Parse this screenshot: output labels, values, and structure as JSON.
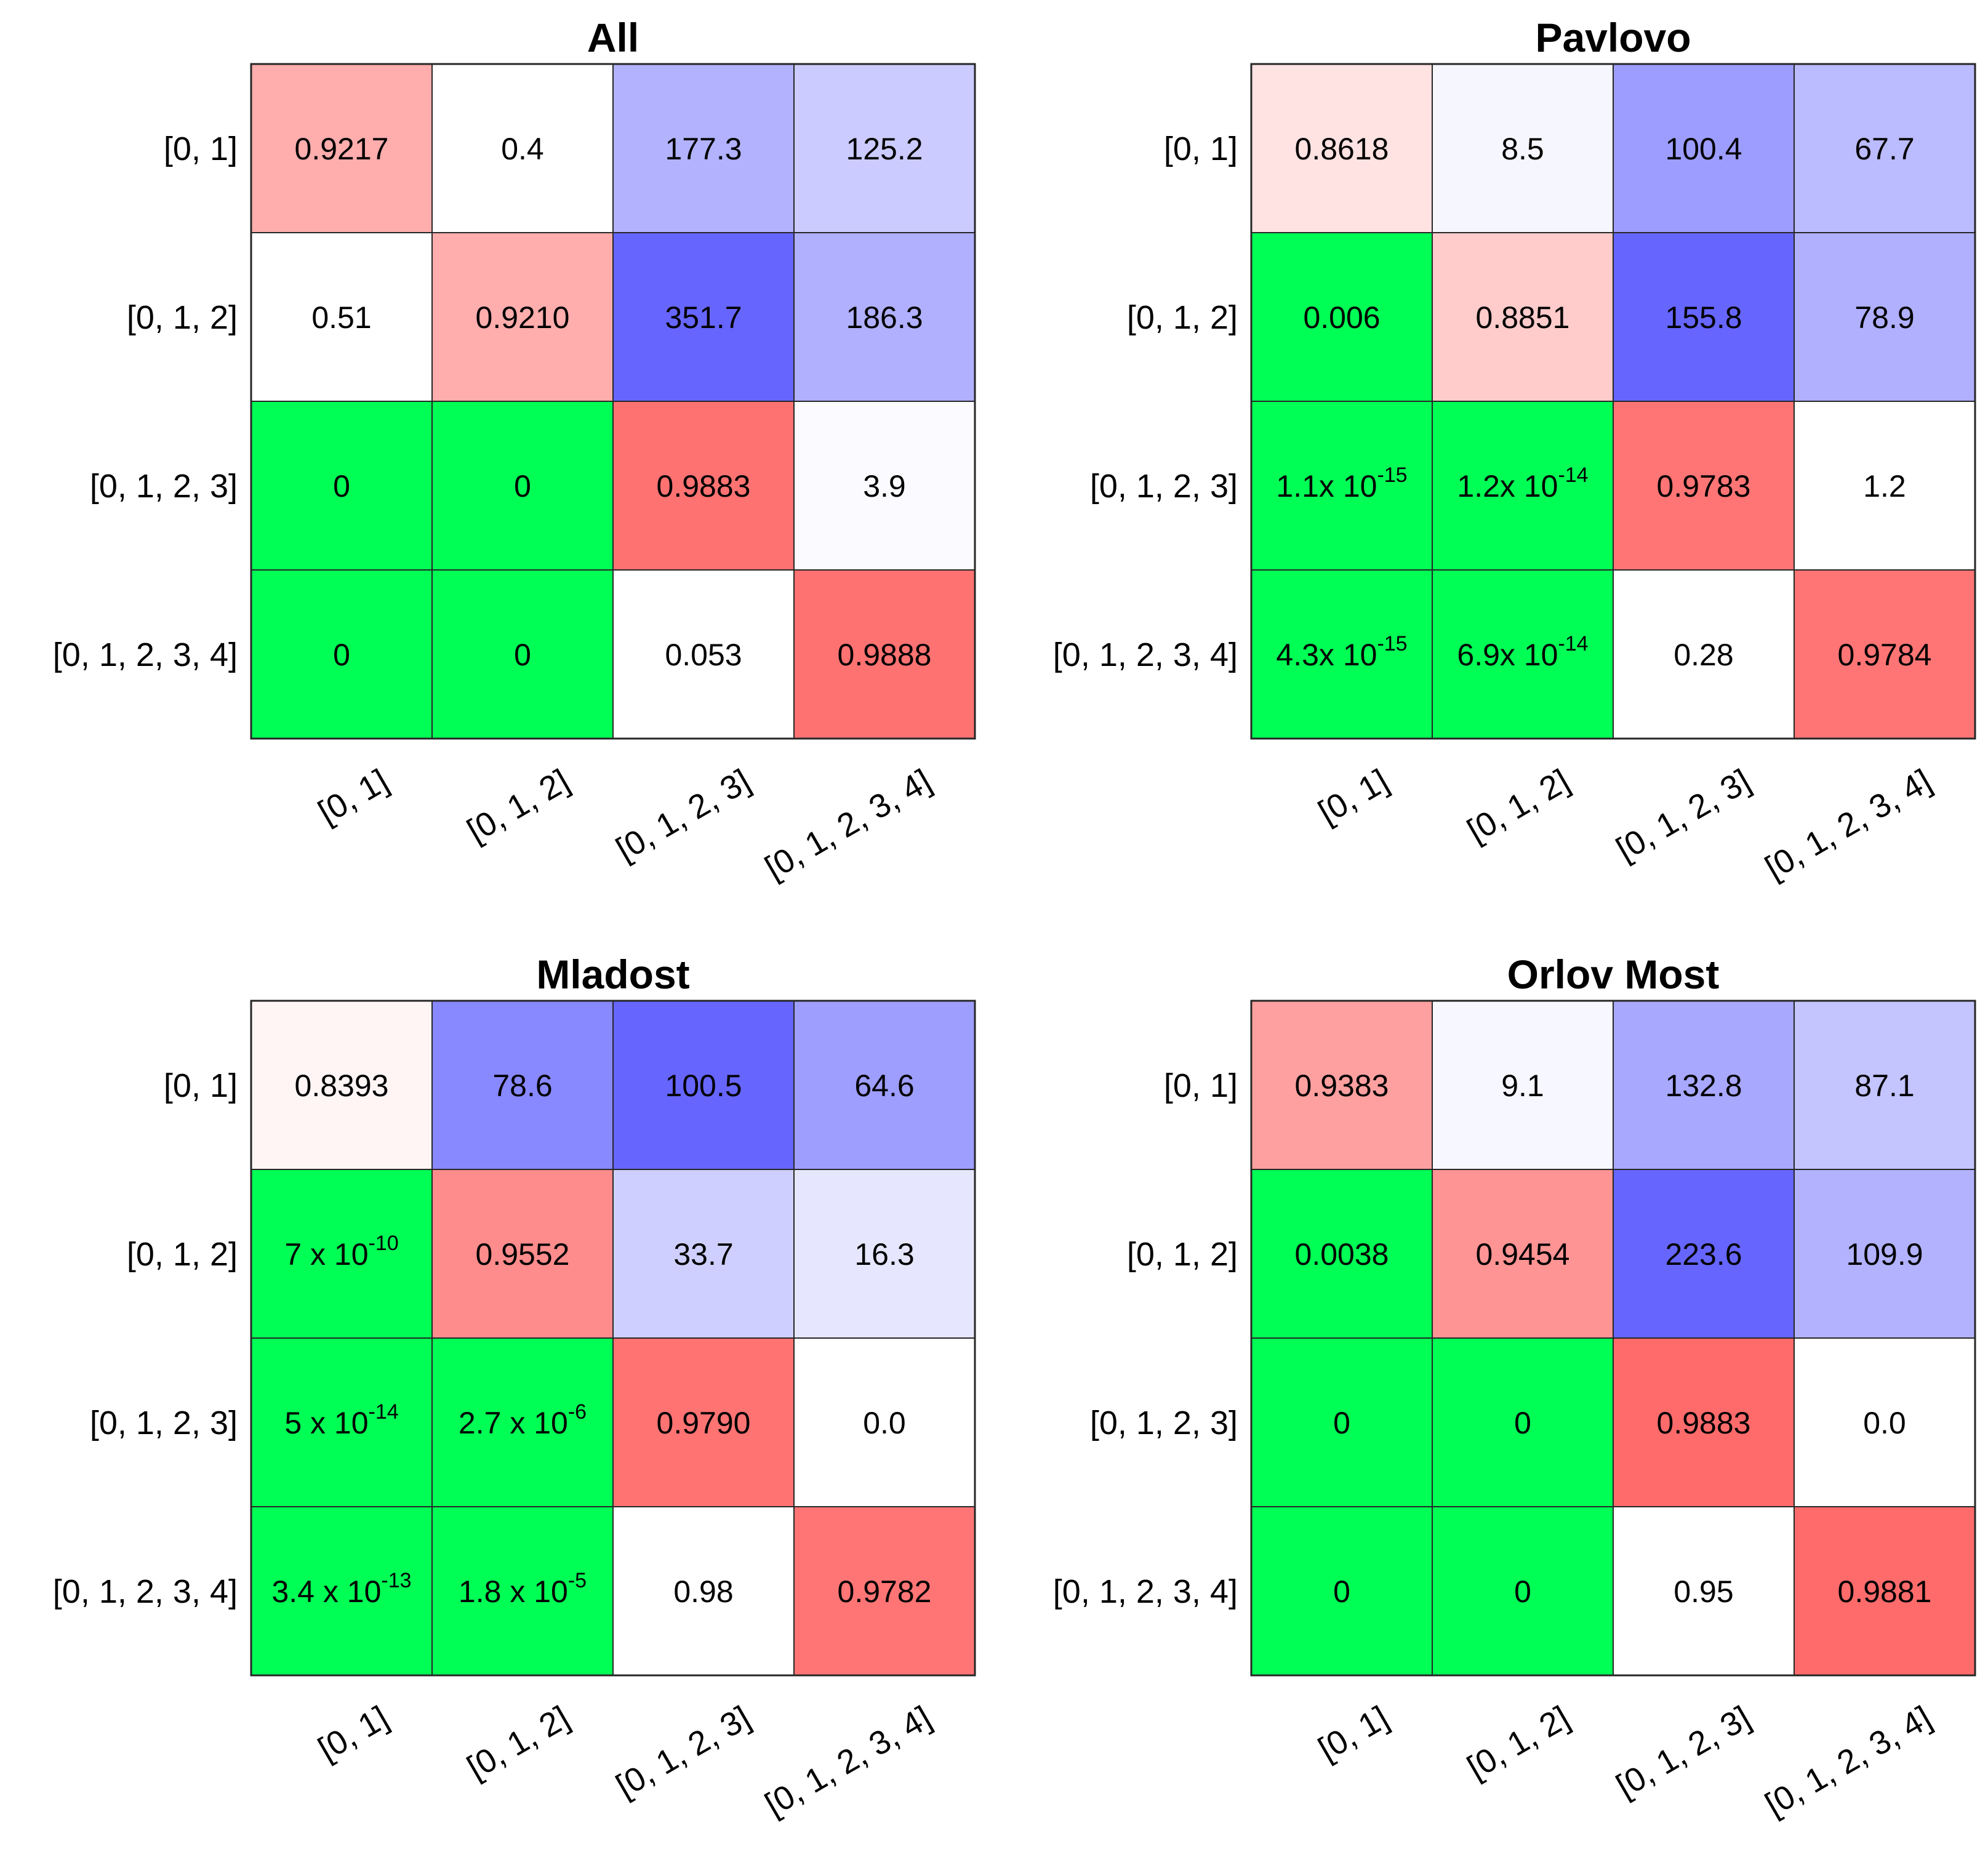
{
  "chart_data": [
    {
      "type": "heatmap",
      "title": "All",
      "row_labels": [
        "[0, 1]",
        "[0, 1, 2]",
        "[0, 1, 2, 3]",
        "[0, 1, 2, 3, 4]"
      ],
      "col_labels": [
        "[0, 1]",
        "[0, 1, 2]",
        "[0, 1, 2, 3]",
        "[0, 1, 2, 3, 4]"
      ],
      "cells": [
        [
          {
            "text": "0.9217",
            "color": "#ffadad"
          },
          {
            "text": "0.4",
            "color": "#ffffff"
          },
          {
            "text": "177.3",
            "color": "#b2b2ff"
          },
          {
            "text": "125.2",
            "color": "#cbcbff"
          }
        ],
        [
          {
            "text": "0.51",
            "color": "#ffffff"
          },
          {
            "text": "0.9210",
            "color": "#ffadad"
          },
          {
            "text": "351.7",
            "color": "#6666ff"
          },
          {
            "text": "186.3",
            "color": "#b0b0ff"
          }
        ],
        [
          {
            "text": "0",
            "color": "#00ff55"
          },
          {
            "text": "0",
            "color": "#00ff55"
          },
          {
            "text": "0.9883",
            "color": "#ff7272"
          },
          {
            "text": "3.9",
            "color": "#fbfbff"
          }
        ],
        [
          {
            "text": "0",
            "color": "#00ff55"
          },
          {
            "text": "0",
            "color": "#00ff55"
          },
          {
            "text": "0.053",
            "color": "#ffffff"
          },
          {
            "text": "0.9888",
            "color": "#ff7272"
          }
        ]
      ]
    },
    {
      "type": "heatmap",
      "title": "Pavlovo",
      "row_labels": [
        "[0, 1]",
        "[0, 1, 2]",
        "[0, 1, 2, 3]",
        "[0, 1, 2, 3, 4]"
      ],
      "col_labels": [
        "[0, 1]",
        "[0, 1, 2]",
        "[0, 1, 2, 3]",
        "[0, 1, 2, 3, 4]"
      ],
      "cells": [
        [
          {
            "text": "0.8618",
            "color": "#ffe2e2"
          },
          {
            "text": "8.5",
            "color": "#f6f6ff"
          },
          {
            "text": "100.4",
            "color": "#9d9dff"
          },
          {
            "text": "67.7",
            "color": "#bbbbff"
          }
        ],
        [
          {
            "text": "0.006",
            "color": "#00ff55"
          },
          {
            "text": "0.8851",
            "color": "#ffcbcb"
          },
          {
            "text": "155.8",
            "color": "#6666ff"
          },
          {
            "text": "78.9",
            "color": "#b0b0ff"
          }
        ],
        [
          {
            "base": "1.1x 10",
            "exp": "-15",
            "color": "#00ff55"
          },
          {
            "base": "1.2x 10",
            "exp": "-14",
            "color": "#00ff55"
          },
          {
            "text": "0.9783",
            "color": "#ff7575"
          },
          {
            "text": "1.2",
            "color": "#ffffff"
          }
        ],
        [
          {
            "base": "4.3x 10",
            "exp": "-15",
            "color": "#00ff55"
          },
          {
            "base": "6.9x 10",
            "exp": "-14",
            "color": "#00ff55"
          },
          {
            "text": "0.28",
            "color": "#ffffff"
          },
          {
            "text": "0.9784",
            "color": "#ff7575"
          }
        ]
      ]
    },
    {
      "type": "heatmap",
      "title": "Mladost",
      "row_labels": [
        "[0, 1]",
        "[0, 1, 2]",
        "[0, 1, 2, 3]",
        "[0, 1, 2, 3, 4]"
      ],
      "col_labels": [
        "[0, 1]",
        "[0, 1, 2]",
        "[0, 1, 2, 3]",
        "[0, 1, 2, 3, 4]"
      ],
      "cells": [
        [
          {
            "text": "0.8393",
            "color": "#fff5f5"
          },
          {
            "text": "78.6",
            "color": "#8888ff"
          },
          {
            "text": "100.5",
            "color": "#6666ff"
          },
          {
            "text": "64.6",
            "color": "#9e9eff"
          }
        ],
        [
          {
            "base": "7 x 10",
            "exp": "-10",
            "color": "#00ff55"
          },
          {
            "text": "0.9552",
            "color": "#ff8c8c"
          },
          {
            "text": "33.7",
            "color": "#cfcfff"
          },
          {
            "text": "16.3",
            "color": "#e6e6ff"
          }
        ],
        [
          {
            "base": "5 x 10",
            "exp": "-14",
            "color": "#00ff55"
          },
          {
            "base": "2.7 x 10",
            "exp": "-6",
            "color": "#00ff55"
          },
          {
            "text": "0.9790",
            "color": "#ff7373"
          },
          {
            "text": "0.0",
            "color": "#ffffff"
          }
        ],
        [
          {
            "base": "3.4 x 10",
            "exp": "-13",
            "color": "#00ff55"
          },
          {
            "base": "1.8 x 10",
            "exp": "-5",
            "color": "#00ff55"
          },
          {
            "text": "0.98",
            "color": "#ffffff"
          },
          {
            "text": "0.9782",
            "color": "#ff7575"
          }
        ]
      ]
    },
    {
      "type": "heatmap",
      "title": "Orlov Most",
      "row_labels": [
        "[0, 1]",
        "[0, 1, 2]",
        "[0, 1, 2, 3]",
        "[0, 1, 2, 3, 4]"
      ],
      "col_labels": [
        "[0, 1]",
        "[0, 1, 2]",
        "[0, 1, 2, 3]",
        "[0, 1, 2, 3, 4]"
      ],
      "cells": [
        [
          {
            "text": "0.9383",
            "color": "#ffa0a0"
          },
          {
            "text": "9.1",
            "color": "#f7f7ff"
          },
          {
            "text": "132.8",
            "color": "#a8a8ff"
          },
          {
            "text": "87.1",
            "color": "#c4c4ff"
          }
        ],
        [
          {
            "text": "0.0038",
            "color": "#00ff55"
          },
          {
            "text": "0.9454",
            "color": "#ff9494"
          },
          {
            "text": "223.6",
            "color": "#6666ff"
          },
          {
            "text": "109.9",
            "color": "#b2b2ff"
          }
        ],
        [
          {
            "text": "0",
            "color": "#00ff55"
          },
          {
            "text": "0",
            "color": "#00ff55"
          },
          {
            "text": "0.9883",
            "color": "#ff6b6b"
          },
          {
            "text": "0.0",
            "color": "#ffffff"
          }
        ],
        [
          {
            "text": "0",
            "color": "#00ff55"
          },
          {
            "text": "0",
            "color": "#00ff55"
          },
          {
            "text": "0.95",
            "color": "#ffffff"
          },
          {
            "text": "0.9881",
            "color": "#ff6b6b"
          }
        ]
      ]
    }
  ]
}
